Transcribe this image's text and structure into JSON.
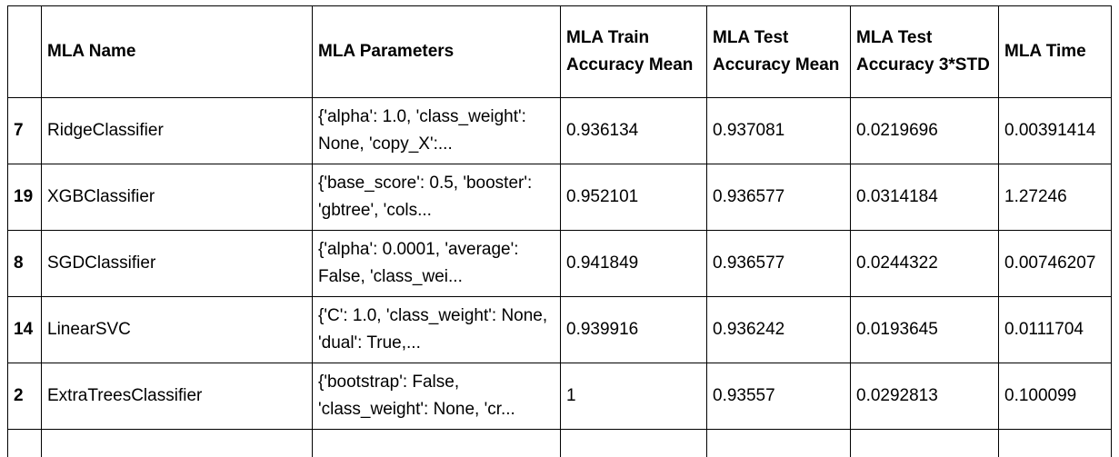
{
  "table": {
    "columns": [
      "",
      "MLA Name",
      "MLA Parameters",
      "MLA Train Accuracy Mean",
      "MLA Test Accuracy Mean",
      "MLA Test Accuracy 3*STD",
      "MLA Time"
    ],
    "rows": [
      {
        "index": "7",
        "name": "RidgeClassifier",
        "params": "{'alpha': 1.0, 'class_weight': None, 'copy_X':...",
        "train_mean": "0.936134",
        "test_mean": "0.937081",
        "test_3std": "0.0219696",
        "time": "0.00391414"
      },
      {
        "index": "19",
        "name": "XGBClassifier",
        "params": "{'base_score': 0.5, 'booster': 'gbtree', 'cols...",
        "train_mean": "0.952101",
        "test_mean": "0.936577",
        "test_3std": "0.0314184",
        "time": "1.27246"
      },
      {
        "index": "8",
        "name": "SGDClassifier",
        "params": "{'alpha': 0.0001, 'average': False, 'class_wei...",
        "train_mean": "0.941849",
        "test_mean": "0.936577",
        "test_3std": "0.0244322",
        "time": "0.00746207"
      },
      {
        "index": "14",
        "name": "LinearSVC",
        "params": "{'C': 1.0, 'class_weight': None, 'dual': True,...",
        "train_mean": "0.939916",
        "test_mean": "0.936242",
        "test_3std": "0.0193645",
        "time": "0.0111704"
      },
      {
        "index": "2",
        "name": "ExtraTreesClassifier",
        "params": "{'bootstrap': False, 'class_weight': None, 'cr...",
        "train_mean": "1",
        "test_mean": "0.93557",
        "test_3std": "0.0292813",
        "time": "0.100099"
      }
    ]
  }
}
